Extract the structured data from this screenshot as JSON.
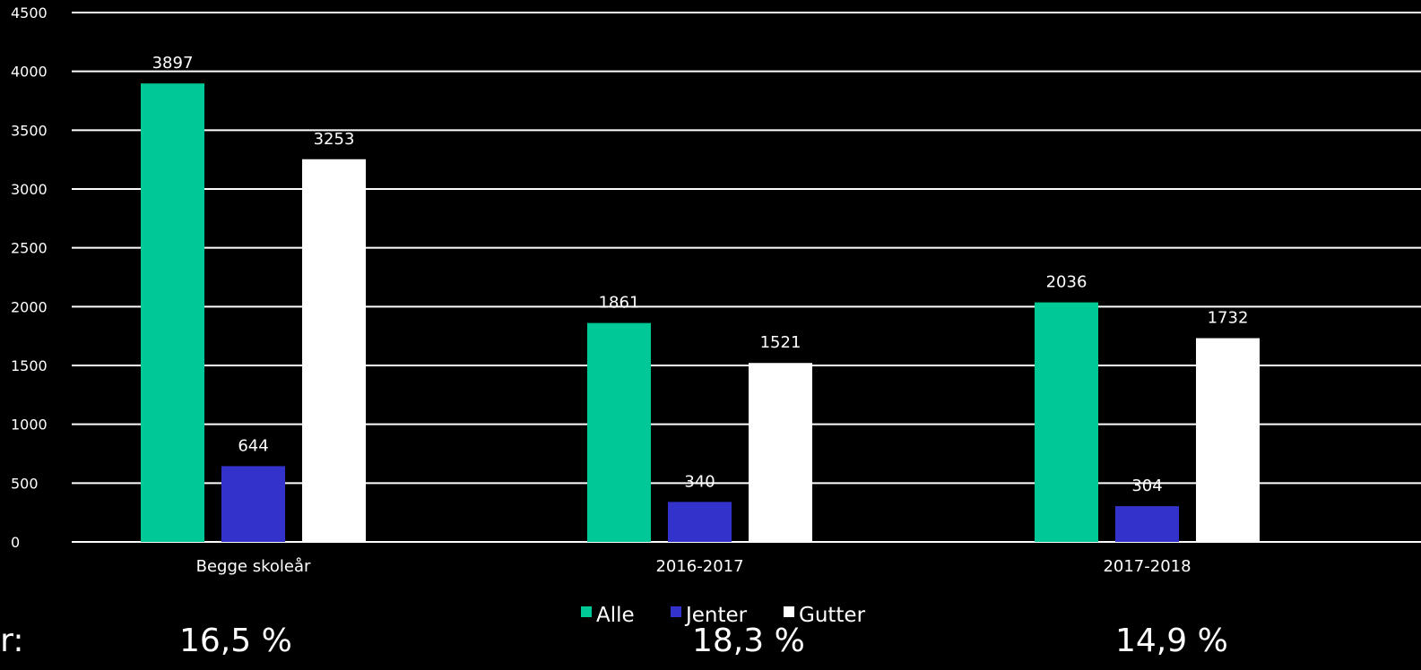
{
  "chart_data": {
    "type": "bar",
    "categories": [
      "Begge skoleår",
      "2016-2017",
      "2017-2018"
    ],
    "series": [
      {
        "name": "Alle",
        "color": "#00c896",
        "values": [
          3897,
          1861,
          2036
        ]
      },
      {
        "name": "Jenter",
        "color": "#3333cc",
        "values": [
          644,
          340,
          304
        ]
      },
      {
        "name": "Gutter",
        "color": "#ffffff",
        "values": [
          3253,
          1521,
          1732
        ]
      }
    ],
    "ylim": [
      0,
      4500
    ],
    "yticks": [
      0,
      500,
      1000,
      1500,
      2000,
      2500,
      3000,
      3500,
      4000,
      4500
    ],
    "grid": true,
    "legend": "bottom"
  },
  "footer": {
    "label": "er:",
    "percentages": [
      "16,5 %",
      "18,3 %",
      "14,9 %"
    ]
  }
}
